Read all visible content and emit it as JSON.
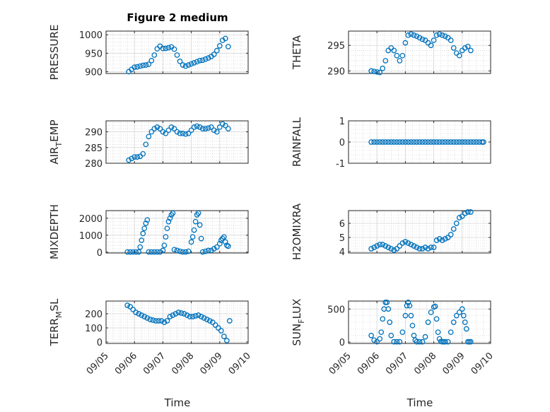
{
  "title": "Figure 2 medium",
  "xlabel": "Time",
  "colors": {
    "marker": "#0072BD",
    "axis": "#262626",
    "grid": "#c8c8c8"
  },
  "chart_data": [
    {
      "type": "scatter",
      "ylabel_main": "PRESSURE",
      "ylabel_sub": "",
      "ylim": [
        895,
        1010
      ],
      "yticks": [
        900,
        950,
        1000
      ],
      "yticklabels": [
        "900",
        "950",
        "1000"
      ],
      "x": [
        5.8,
        5.9,
        6,
        6.1,
        6.2,
        6.3,
        6.4,
        6.5,
        6.6,
        6.7,
        6.8,
        6.9,
        7,
        7.1,
        7.2,
        7.3,
        7.4,
        7.5,
        7.6,
        7.7,
        7.8,
        7.9,
        8,
        8.1,
        8.2,
        8.3,
        8.4,
        8.5,
        8.6,
        8.7,
        8.8,
        8.9,
        9,
        9.1,
        9.2,
        9.3
      ],
      "y": [
        900,
        906,
        912,
        913,
        915,
        917,
        918,
        920,
        930,
        945,
        962,
        969,
        963,
        963,
        965,
        967,
        961,
        945,
        928,
        918,
        915,
        918,
        921,
        924,
        927,
        930,
        931,
        934,
        937,
        941,
        947,
        957,
        970,
        985,
        990,
        968
      ]
    },
    {
      "type": "scatter",
      "ylabel_main": "THETA",
      "ylabel_sub": "",
      "ylim": [
        289.5,
        297.8
      ],
      "yticks": [
        290,
        295
      ],
      "yticklabels": [
        "290",
        "295"
      ],
      "x": [
        5.8,
        5.9,
        6,
        6.1,
        6.2,
        6.3,
        6.4,
        6.5,
        6.6,
        6.7,
        6.8,
        6.9,
        7,
        7.1,
        7.2,
        7.3,
        7.4,
        7.5,
        7.6,
        7.7,
        7.8,
        7.9,
        8,
        8.1,
        8.2,
        8.3,
        8.4,
        8.5,
        8.6,
        8.7,
        8.8,
        8.9,
        9,
        9.1,
        9.2,
        9.3
      ],
      "y": [
        290,
        289.9,
        289.8,
        289.7,
        290.5,
        292,
        294,
        294.5,
        294,
        293,
        292,
        293,
        295.5,
        297,
        297.2,
        297,
        296.8,
        296.5,
        296.2,
        296,
        295.5,
        295,
        296,
        297,
        297.2,
        297,
        296.8,
        296.5,
        296,
        294.5,
        293.5,
        293,
        294,
        294.5,
        294.8,
        294
      ]
    },
    {
      "type": "scatter",
      "ylabel_main": "AIR",
      "ylabel_sub": "T",
      "ylabel_rest": "EMP",
      "ylim": [
        280,
        293.5
      ],
      "yticks": [
        280,
        285,
        290
      ],
      "yticklabels": [
        "280",
        "285",
        "290"
      ],
      "x": [
        5.8,
        5.9,
        6,
        6.1,
        6.2,
        6.3,
        6.4,
        6.5,
        6.6,
        6.7,
        6.8,
        6.9,
        7,
        7.1,
        7.2,
        7.3,
        7.4,
        7.5,
        7.6,
        7.7,
        7.8,
        7.9,
        8,
        8.1,
        8.2,
        8.3,
        8.4,
        8.5,
        8.6,
        8.7,
        8.8,
        8.9,
        9,
        9.1,
        9.2,
        9.3
      ],
      "y": [
        281,
        281.5,
        282,
        282,
        282.2,
        283,
        286,
        288.5,
        290,
        291,
        291.5,
        291,
        290,
        289.5,
        290.5,
        291.5,
        291,
        290,
        289.5,
        289.5,
        289.3,
        289.5,
        290.5,
        291.5,
        291.8,
        291.5,
        291,
        291,
        291.2,
        291.5,
        290.5,
        290,
        291.5,
        292.5,
        292,
        291
      ]
    },
    {
      "type": "scatter",
      "ylabel_main": "RAINFALL",
      "ylabel_sub": "",
      "ylim": [
        -1,
        1
      ],
      "yticks": [
        -1,
        0,
        1
      ],
      "yticklabels": [
        "-1",
        "0",
        "1"
      ],
      "x": [
        5.8,
        5.9,
        6,
        6.1,
        6.2,
        6.3,
        6.4,
        6.5,
        6.6,
        6.7,
        6.8,
        6.9,
        7,
        7.1,
        7.2,
        7.3,
        7.4,
        7.5,
        7.6,
        7.7,
        7.8,
        7.9,
        8,
        8.1,
        8.2,
        8.3,
        8.4,
        8.5,
        8.6,
        8.7,
        8.8,
        8.9,
        9,
        9.1,
        9.2,
        9.3,
        9.4,
        9.5,
        9.6,
        9.7,
        9.75
      ],
      "y": [
        0,
        0,
        0,
        0,
        0,
        0,
        0,
        0,
        0,
        0,
        0,
        0,
        0,
        0,
        0,
        0,
        0,
        0,
        0,
        0,
        0,
        0,
        0,
        0,
        0,
        0,
        0,
        0,
        0,
        0,
        0,
        0,
        0,
        0,
        0,
        0,
        0,
        0,
        0,
        0,
        0
      ]
    },
    {
      "type": "scatter",
      "ylabel_main": "MIXDEPTH",
      "ylabel_sub": "",
      "ylim": [
        -50,
        2450
      ],
      "yticks": [
        0,
        1000,
        2000
      ],
      "yticklabels": [
        "0",
        "1000",
        "2000"
      ],
      "x": [
        5.75,
        5.85,
        5.95,
        6.05,
        6.15,
        6.2,
        6.25,
        6.3,
        6.35,
        6.4,
        6.45,
        6.5,
        6.6,
        6.7,
        6.8,
        6.9,
        7,
        7.05,
        7.1,
        7.15,
        7.2,
        7.25,
        7.3,
        7.35,
        7.4,
        7.5,
        7.6,
        7.7,
        7.8,
        7.9,
        8,
        8.05,
        8.1,
        8.15,
        8.2,
        8.25,
        8.3,
        8.35,
        8.4,
        8.5,
        8.6,
        8.7,
        8.8,
        8.9,
        9,
        9.05,
        9.1,
        9.15,
        9.2,
        9.25,
        9.3
      ],
      "y": [
        10,
        10,
        10,
        10,
        10,
        300,
        700,
        1100,
        1400,
        1700,
        1900,
        10,
        10,
        10,
        10,
        10,
        100,
        400,
        900,
        1400,
        1800,
        2000,
        2200,
        2300,
        150,
        100,
        50,
        10,
        10,
        50,
        600,
        900,
        1300,
        1800,
        2200,
        2300,
        1600,
        800,
        10,
        50,
        100,
        100,
        200,
        300,
        500,
        700,
        800,
        900,
        600,
        400,
        350
      ]
    },
    {
      "type": "scatter",
      "ylabel_main": "H2OMIXRA",
      "ylabel_sub": "",
      "ylim": [
        3.9,
        6.9
      ],
      "yticks": [
        4,
        5,
        6
      ],
      "yticklabels": [
        "4",
        "5",
        "6"
      ],
      "x": [
        5.8,
        5.9,
        6,
        6.1,
        6.2,
        6.3,
        6.4,
        6.5,
        6.6,
        6.7,
        6.8,
        6.9,
        7,
        7.1,
        7.2,
        7.3,
        7.4,
        7.5,
        7.6,
        7.7,
        7.8,
        7.9,
        8,
        8.1,
        8.2,
        8.3,
        8.4,
        8.5,
        8.6,
        8.7,
        8.8,
        8.9,
        9,
        9.1,
        9.2,
        9.3
      ],
      "y": [
        4.2,
        4.3,
        4.4,
        4.5,
        4.5,
        4.4,
        4.3,
        4.2,
        4.1,
        4.2,
        4.4,
        4.6,
        4.7,
        4.6,
        4.5,
        4.4,
        4.3,
        4.2,
        4.2,
        4.3,
        4.2,
        4.3,
        4.3,
        4.8,
        4.9,
        4.8,
        4.9,
        5,
        5.2,
        5.6,
        6,
        6.4,
        6.5,
        6.7,
        6.8,
        6.8
      ]
    },
    {
      "type": "scatter",
      "ylabel_main": "TERR",
      "ylabel_sub": "M",
      "ylabel_rest": "SL",
      "ylim": [
        -10,
        290
      ],
      "yticks": [
        0,
        100,
        200
      ],
      "yticklabels": [
        "0",
        "100",
        "200"
      ],
      "x": [
        5.75,
        5.85,
        5.95,
        6.05,
        6.15,
        6.25,
        6.35,
        6.45,
        6.55,
        6.65,
        6.75,
        6.85,
        6.95,
        7.05,
        7.15,
        7.25,
        7.35,
        7.45,
        7.55,
        7.65,
        7.75,
        7.85,
        7.95,
        8.05,
        8.15,
        8.25,
        8.35,
        8.45,
        8.55,
        8.65,
        8.75,
        8.85,
        8.95,
        9.05,
        9.15,
        9.25,
        9.35
      ],
      "y": [
        260,
        250,
        230,
        210,
        200,
        190,
        180,
        170,
        160,
        155,
        150,
        150,
        150,
        140,
        150,
        180,
        190,
        200,
        210,
        205,
        200,
        190,
        180,
        180,
        185,
        190,
        180,
        170,
        160,
        150,
        140,
        120,
        100,
        80,
        40,
        10,
        150
      ]
    },
    {
      "type": "scatter",
      "ylabel_main": "SUN",
      "ylabel_sub": "F",
      "ylabel_rest": "LUX",
      "ylim": [
        -20,
        620
      ],
      "yticks": [
        0,
        500
      ],
      "yticklabels": [
        "0",
        "500"
      ],
      "x": [
        5.8,
        5.9,
        6,
        6.1,
        6.15,
        6.2,
        6.25,
        6.3,
        6.35,
        6.4,
        6.45,
        6.5,
        6.6,
        6.7,
        6.8,
        6.9,
        7,
        7.05,
        7.1,
        7.15,
        7.2,
        7.25,
        7.3,
        7.35,
        7.4,
        7.5,
        7.6,
        7.7,
        7.8,
        7.9,
        8,
        8.05,
        8.1,
        8.15,
        8.2,
        8.25,
        8.3,
        8.35,
        8.4,
        8.5,
        8.6,
        8.7,
        8.8,
        8.9,
        9,
        9.05,
        9.1,
        9.15,
        9.2,
        9.25,
        9.3
      ],
      "y": [
        100,
        30,
        5,
        50,
        150,
        350,
        500,
        600,
        600,
        500,
        300,
        100,
        5,
        5,
        5,
        150,
        400,
        550,
        600,
        550,
        400,
        250,
        100,
        30,
        5,
        5,
        5,
        80,
        300,
        450,
        530,
        540,
        350,
        150,
        50,
        10,
        5,
        5,
        5,
        5,
        150,
        300,
        400,
        450,
        500,
        400,
        300,
        200,
        5,
        5,
        5
      ]
    }
  ],
  "xaxis": {
    "xlim": [
      5,
      10
    ],
    "xticks": [
      5,
      6,
      7,
      8,
      9,
      10
    ],
    "xticklabels": [
      "09/05",
      "09/06",
      "09/07",
      "09/08",
      "09/09",
      "09/10"
    ]
  }
}
